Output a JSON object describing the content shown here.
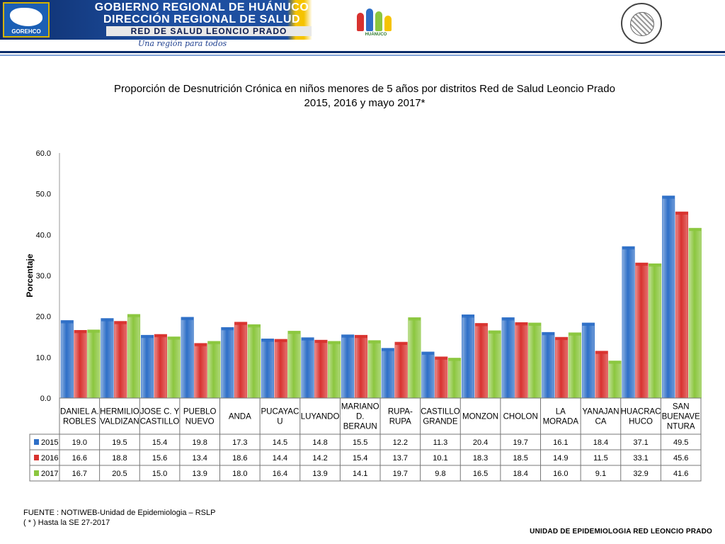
{
  "header": {
    "line1": "GOBIERNO REGIONAL DE HUÁNUCO",
    "line2": "DIRECCIÓN REGIONAL DE SALUD",
    "line3": "RED DE SALUD LEONCIO PRADO",
    "tagline": "Una región para todos",
    "logo_left_label": "GOREHCO",
    "logo_mid_label": "HUÁNUCO",
    "seal_label": "RED NACIONAL DE EPIDEMIOLOGIA · RENACE"
  },
  "colors": {
    "2015": "#2e6fc7",
    "2016": "#d8322f",
    "2017": "#8bc63e"
  },
  "chart_data": {
    "type": "bar",
    "title_line1": "Proporción de Desnutrición Crónica en niños menores de 5 años por distritos Red  de Salud Leoncio Prado",
    "title_line2": "2015, 2016 y  mayo 2017*",
    "ylabel": "Porcentaje",
    "ylim": [
      0,
      60
    ],
    "yticks": [
      "0.0",
      "10.0",
      "20.0",
      "30.0",
      "40.0",
      "50.0",
      "60.0"
    ],
    "grid": false,
    "legend": "table-left",
    "categories": [
      [
        "DANIEL A.",
        "ROBLES"
      ],
      [
        "HERMILIO",
        "VALDIZAN"
      ],
      [
        "JOSE C. Y",
        "CASTILLO"
      ],
      [
        "PUEBLO",
        "NUEVO"
      ],
      [
        "ANDA"
      ],
      [
        "PUCAYAC",
        "U"
      ],
      [
        "LUYANDO"
      ],
      [
        "MARIANO",
        "D.",
        "BERAUN"
      ],
      [
        "RUPA-",
        "RUPA"
      ],
      [
        "CASTILLO",
        "GRANDE"
      ],
      [
        "MONZON"
      ],
      [
        "CHOLON"
      ],
      [
        "LA",
        "MORADA"
      ],
      [
        "YANAJAN",
        "CA"
      ],
      [
        "HUACRAC",
        "HUCO"
      ],
      [
        "SAN",
        "BUENAVE",
        "NTURA"
      ]
    ],
    "series": [
      {
        "name": "2015",
        "values": [
          19.0,
          19.5,
          15.4,
          19.8,
          17.3,
          14.5,
          14.8,
          15.5,
          12.2,
          11.3,
          20.4,
          19.7,
          16.1,
          18.4,
          37.1,
          49.5
        ]
      },
      {
        "name": "2016",
        "values": [
          16.6,
          18.8,
          15.6,
          13.4,
          18.6,
          14.4,
          14.2,
          15.4,
          13.7,
          10.1,
          18.3,
          18.5,
          14.9,
          11.5,
          33.1,
          45.6
        ]
      },
      {
        "name": "2017",
        "values": [
          16.7,
          20.5,
          15.0,
          13.9,
          18.0,
          16.4,
          13.9,
          14.1,
          19.7,
          9.8,
          16.5,
          18.4,
          16.0,
          9.1,
          32.9,
          41.6
        ]
      }
    ]
  },
  "footer": {
    "source": "FUENTE : NOTIWEB-Unidad de Epidemiologia – RSLP",
    "note": "( * ) Hasta la SE  27-2017",
    "unit": "UNIDAD  DE EPIDEMIOLOGIA RED LEONCIO PRADO"
  }
}
